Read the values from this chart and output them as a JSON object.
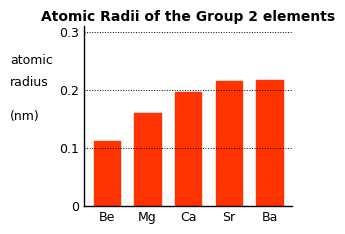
{
  "title": "Atomic Radii of the Group 2 elements",
  "categories": [
    "Be",
    "Mg",
    "Ca",
    "Sr",
    "Ba"
  ],
  "values": [
    0.112,
    0.16,
    0.197,
    0.215,
    0.217
  ],
  "bar_color": "#FF3300",
  "ylabel_line1": "atomic",
  "ylabel_line2": "radius",
  "ylabel_line3": "(nm)",
  "ylim": [
    0,
    0.31
  ],
  "yticks": [
    0,
    0.1,
    0.2,
    0.3
  ],
  "ytick_labels": [
    "0",
    "0.1",
    "0.2",
    "0.3"
  ],
  "background_color": "#ffffff",
  "title_fontsize": 10,
  "tick_fontsize": 9,
  "label_fontsize": 9,
  "bar_width": 0.65
}
